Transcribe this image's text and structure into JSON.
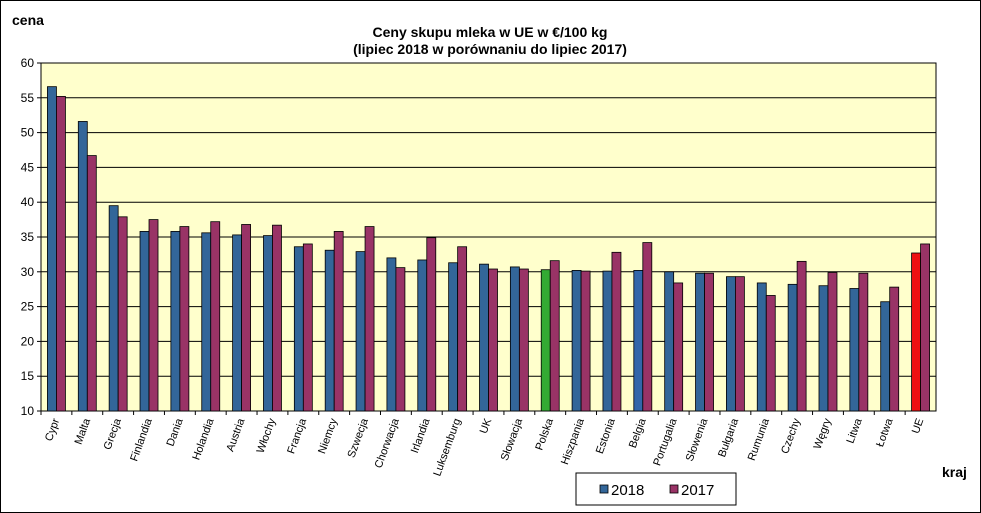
{
  "chart_data": {
    "type": "bar",
    "title": "Ceny skupu mleka  w UE w €/100 kg",
    "subtitle": "(lipiec  2018  w porównaniu do lipiec  2017)",
    "ylabel": "cena",
    "xlabel": "kraj",
    "ylim": [
      10,
      60
    ],
    "yticks": [
      10,
      15,
      20,
      25,
      30,
      35,
      40,
      45,
      50,
      55,
      60
    ],
    "grid": true,
    "legend_position": "bottom-right",
    "plot_background": "#ffffcc",
    "categories": [
      "Cypr",
      "Malta",
      "Grecja",
      "Finlandia",
      "Dania",
      "Holandia",
      "Austria",
      "Włochy",
      "Francja",
      "Niemcy",
      "Szwecja",
      "Chorwacja",
      "Irlandia",
      "Luksemburg",
      "UK",
      "Słowacja",
      "Polska",
      "Hiszpania",
      "Estonia",
      "Belgia",
      "Portugalia",
      "Słowenia",
      "Bułgaria",
      "Rumunia",
      "Czechy",
      "Węgry",
      "Litwa",
      "Łotwa",
      "UE"
    ],
    "series": [
      {
        "name": "2018",
        "color": "#336699",
        "values": [
          56.6,
          51.6,
          39.5,
          35.8,
          35.8,
          35.6,
          35.3,
          35.2,
          33.6,
          33.1,
          32.9,
          32.0,
          31.7,
          31.3,
          31.1,
          30.7,
          30.3,
          30.2,
          30.1,
          30.2,
          30.0,
          29.8,
          29.3,
          28.4,
          28.2,
          28.0,
          27.6,
          25.7,
          32.7
        ]
      },
      {
        "name": "2017",
        "color": "#993366",
        "values": [
          55.2,
          46.7,
          37.9,
          37.5,
          36.5,
          37.2,
          36.8,
          36.7,
          34.0,
          35.8,
          36.5,
          30.6,
          34.9,
          33.6,
          30.4,
          30.4,
          31.6,
          30.1,
          32.8,
          34.2,
          28.4,
          29.8,
          29.3,
          26.6,
          31.5,
          29.9,
          29.8,
          27.8,
          34.0
        ]
      }
    ],
    "highlight_colors": {
      "Polska-2018": "#33aa33",
      "Belgia-2018": "#3366aa",
      "UE-2018": "#ee1111"
    }
  }
}
